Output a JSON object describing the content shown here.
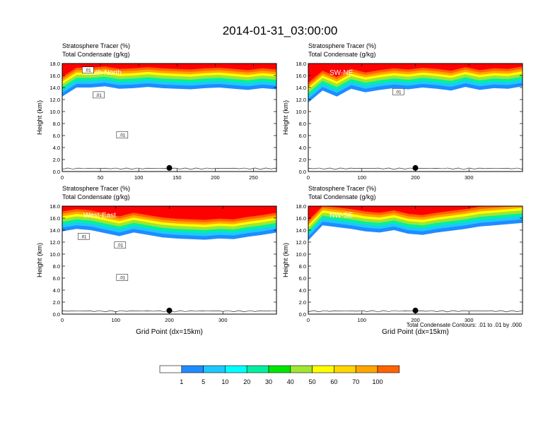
{
  "figure": {
    "title": "2014-01-31_03:00:00",
    "footnote": "Total Condensate Contours: .01 to .01 by .000",
    "colorbar_labels": [
      "1",
      "5",
      "10",
      "20",
      "30",
      "40",
      "50",
      "60",
      "70",
      "100"
    ],
    "colorbar_colors": [
      "#ffffff",
      "#1e8cff",
      "#1ec8ff",
      "#00ffff",
      "#00f0a0",
      "#00e600",
      "#a0e632",
      "#ffff00",
      "#ffd700",
      "#ffa500",
      "#ff6400",
      "#ff0000"
    ]
  },
  "chart_data": [
    {
      "type": "heatmap",
      "panel_label": "South-North",
      "header_line1": "Stratosphere Tracer   (%)",
      "header_line2": "Total Condensate   (g/kg)",
      "ylabel": "Height (km)",
      "xlabel": "",
      "xlim": [
        0,
        280
      ],
      "xticks": [
        0,
        50,
        100,
        150,
        200,
        250
      ],
      "ylim": [
        0,
        18
      ],
      "yticks": [
        "0.0",
        "2.0",
        "4.0",
        "6.0",
        "8.0",
        "10.0",
        "12.0",
        "14.0",
        "16.0",
        "18.0"
      ],
      "marker_x": 140,
      "contour_labels": [
        ".01",
        ".01",
        ".01"
      ],
      "tracer_bottom_km": [
        12.5,
        14.0,
        14.0,
        14.2,
        13.8,
        13.9,
        14.1,
        13.9,
        13.8,
        13.7,
        13.9,
        14.0,
        13.8,
        13.6,
        13.9,
        13.7
      ]
    },
    {
      "type": "heatmap",
      "panel_label": "SW-NE",
      "header_line1": "Stratosphere Tracer   (%)",
      "header_line2": "Total Condensate   (g/kg)",
      "ylabel": "Height (km)",
      "xlabel": "",
      "xlim": [
        0,
        400
      ],
      "xticks": [
        0,
        100,
        200,
        300
      ],
      "ylim": [
        0,
        18
      ],
      "yticks": [
        "0.0",
        "2.0",
        "4.0",
        "6.0",
        "8.0",
        "10.0",
        "12.0",
        "14.0",
        "16.0",
        "18.0"
      ],
      "marker_x": 200,
      "contour_labels": [
        ".01"
      ],
      "tracer_bottom_km": [
        11.5,
        13.5,
        12.5,
        13.8,
        13.2,
        13.6,
        13.9,
        13.7,
        14.0,
        13.8,
        13.5,
        14.1,
        13.6,
        13.9,
        13.8,
        14.2
      ]
    },
    {
      "type": "heatmap",
      "panel_label": "West-East",
      "header_line1": "Stratosphere Tracer   (%)",
      "header_line2": "Total Condensate   (g/kg)",
      "ylabel": "Height (km)",
      "xlabel": "Grid Point (dx=15km)",
      "xlim": [
        0,
        400
      ],
      "xticks": [
        0,
        100,
        200,
        300
      ],
      "ylim": [
        0,
        18
      ],
      "yticks": [
        "0.0",
        "2.0",
        "4.0",
        "6.0",
        "8.0",
        "10.0",
        "12.0",
        "14.0",
        "16.0",
        "18.0"
      ],
      "marker_x": 200,
      "contour_labels": [
        ".01",
        ".01",
        ".01"
      ],
      "tracer_bottom_km": [
        13.8,
        14.2,
        14.0,
        13.5,
        13.0,
        13.6,
        13.2,
        12.8,
        12.6,
        12.5,
        12.4,
        12.6,
        12.5,
        12.9,
        13.2,
        13.6
      ]
    },
    {
      "type": "heatmap",
      "panel_label": "NW-SE",
      "header_line1": "Stratosphere Tracer   (%)",
      "header_line2": "Total Condensate   (g/kg)",
      "ylabel": "Height (km)",
      "xlabel": "Grid Point (dx=15km)",
      "xlim": [
        0,
        400
      ],
      "xticks": [
        0,
        100,
        200,
        300
      ],
      "ylim": [
        0,
        18
      ],
      "yticks": [
        "0.0",
        "2.0",
        "4.0",
        "6.0",
        "8.0",
        "10.0",
        "12.0",
        "14.0",
        "16.0",
        "18.0"
      ],
      "marker_x": 200,
      "contour_labels": [],
      "tracer_bottom_km": [
        12.3,
        14.8,
        14.5,
        14.2,
        13.8,
        13.6,
        14.0,
        13.4,
        13.2,
        13.6,
        13.9,
        14.2,
        14.6,
        14.8,
        15.0,
        15.2
      ]
    }
  ]
}
